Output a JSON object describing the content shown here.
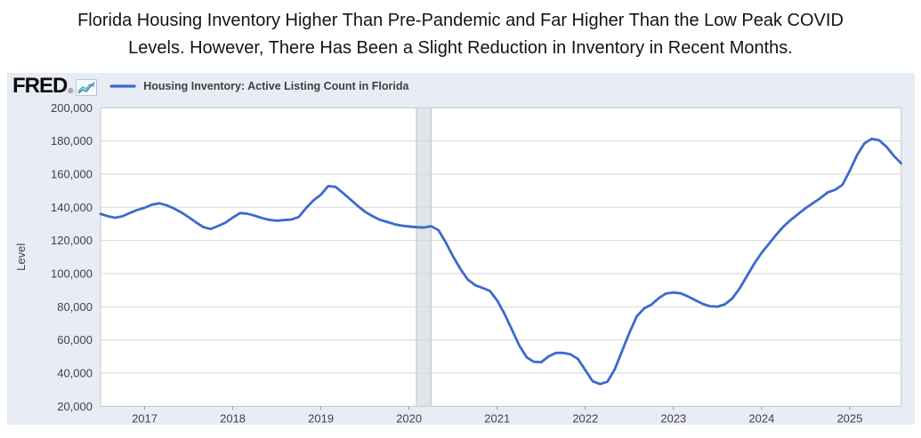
{
  "header": {
    "title_line1": "Florida Housing Inventory Higher Than Pre-Pandemic and Far Higher Than the Low Peak COVID",
    "title_line2": "Levels. However, There Has Been a Slight Reduction in Inventory in Recent Months."
  },
  "fred": {
    "logo_text": "FRED",
    "registered_mark": "®"
  },
  "legend": {
    "label": "Housing Inventory: Active Listing Count in Florida"
  },
  "axes": {
    "y_label": "Level",
    "y_ticks": [
      "200,000",
      "180,000",
      "160,000",
      "140,000",
      "120,000",
      "100,000",
      "80,000",
      "60,000",
      "40,000",
      "20,000"
    ],
    "x_ticks": [
      "2017",
      "2018",
      "2019",
      "2020",
      "2021",
      "2022",
      "2023",
      "2024",
      "2025"
    ]
  },
  "colors": {
    "line": "#3b6acd",
    "chart_bg": "#e8edf5",
    "plot_bg": "#ffffff",
    "plot_border": "#c6c6c6",
    "grid": "#d7d7d7",
    "recession_band": "#e1e4e9",
    "recession_edge": "#bdc2ca",
    "axis_text": "#424242",
    "tick": "#999999"
  },
  "chart_data": {
    "type": "line",
    "title": "Housing Inventory: Active Listing Count in Florida",
    "series_name": "Housing Inventory: Active Listing Count in Florida",
    "frequency": "monthly",
    "x_start": "2016-07",
    "x_end": "2025-08",
    "xlabel": "",
    "ylabel": "Level",
    "ylim": [
      20000,
      200000
    ],
    "xlim_years": [
      2016.5,
      2025.5833
    ],
    "y_tick_step": 20000,
    "grid": "horizontal",
    "legend_position": "top-left",
    "recession_shading": {
      "start": "2020-02",
      "end": "2020-04"
    },
    "values": [
      136000,
      134600,
      133700,
      134600,
      136600,
      138400,
      139700,
      141600,
      142400,
      141200,
      139300,
      136900,
      134000,
      130900,
      128000,
      126900,
      128700,
      130700,
      133800,
      136500,
      136100,
      134900,
      133500,
      132400,
      131900,
      132300,
      132600,
      134200,
      139600,
      144200,
      147600,
      152800,
      152300,
      148600,
      144800,
      140900,
      137300,
      134700,
      132500,
      131200,
      129800,
      128900,
      128400,
      128000,
      127800,
      128600,
      126200,
      118800,
      110300,
      102800,
      96400,
      93000,
      91400,
      89600,
      83800,
      75700,
      66300,
      56700,
      49600,
      46800,
      46600,
      50100,
      52200,
      52200,
      51300,
      48500,
      41800,
      35100,
      33400,
      34800,
      42200,
      53300,
      64300,
      74200,
      79000,
      81300,
      85200,
      88000,
      88600,
      88100,
      86200,
      83900,
      81700,
      80300,
      80100,
      81500,
      85000,
      91000,
      98500,
      106000,
      112500,
      118000,
      123500,
      128500,
      132500,
      136000,
      139500,
      142500,
      145500,
      149000,
      150500,
      153500,
      162000,
      171500,
      178500,
      181300,
      180400,
      176500,
      171000,
      166500
    ]
  }
}
